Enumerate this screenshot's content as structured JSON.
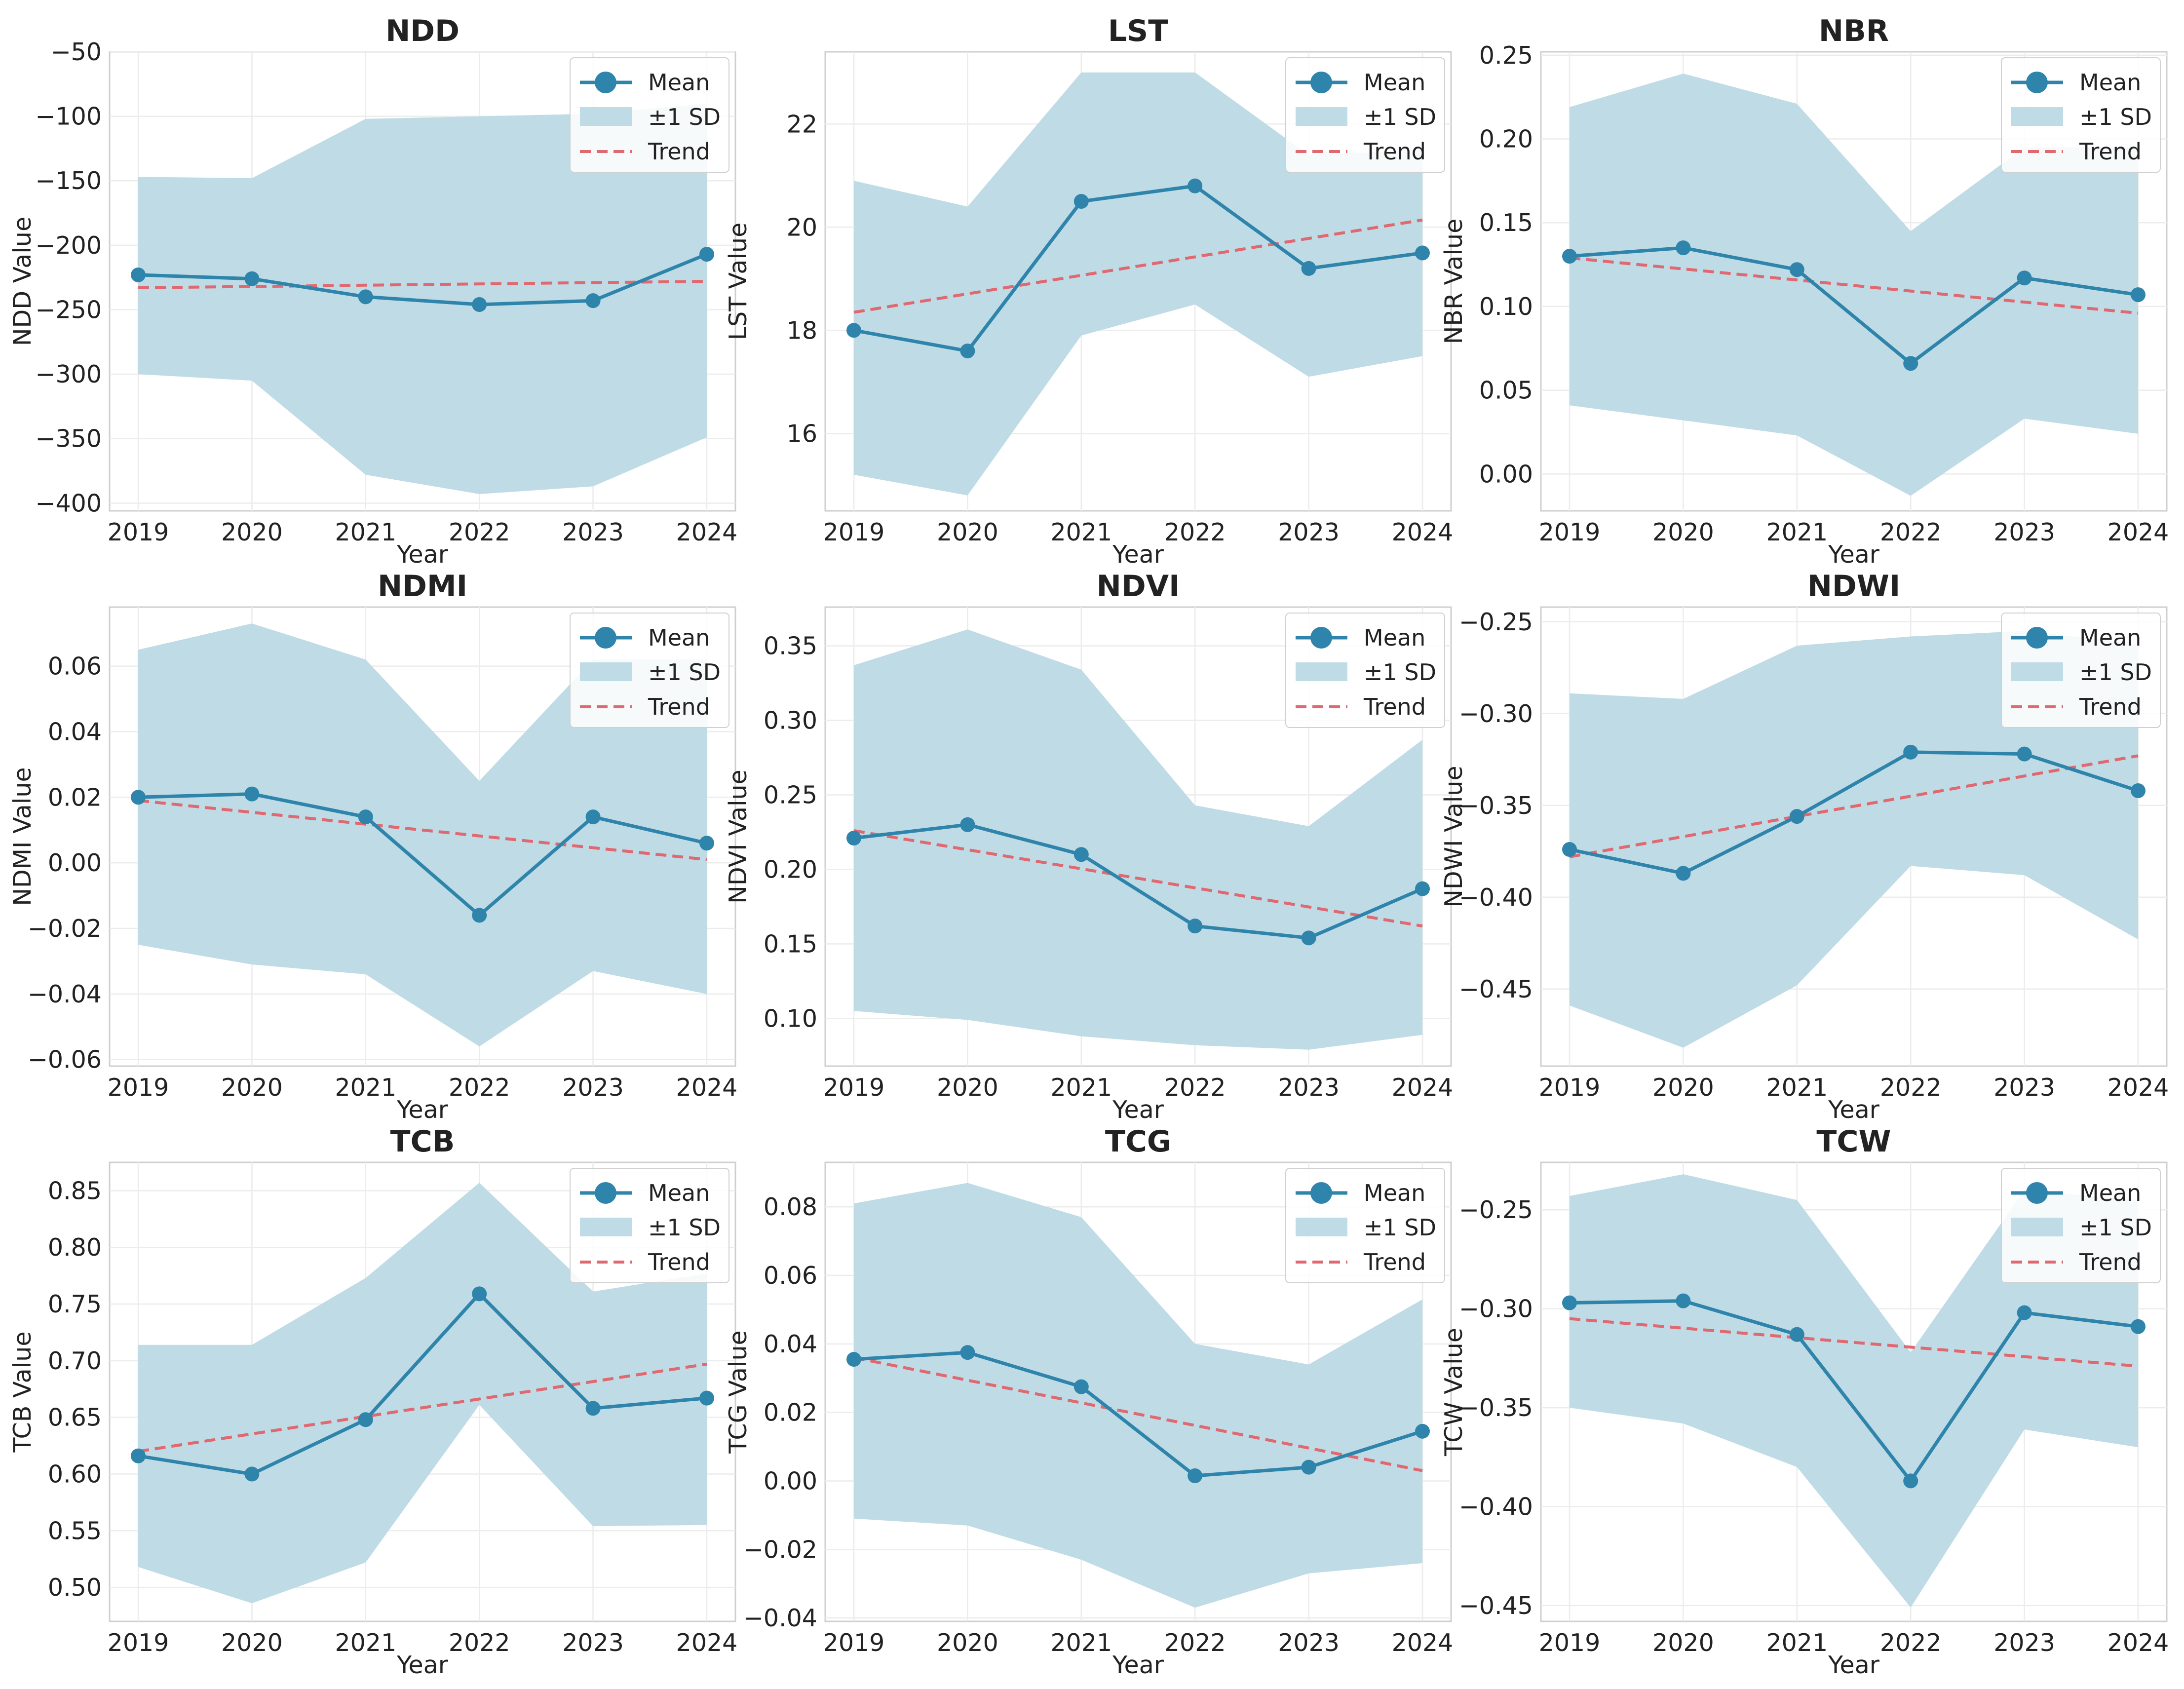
{
  "chart_data": [
    {
      "type": "line",
      "title": "NDD",
      "xlabel": "Year",
      "ylabel": "NDD Value",
      "categories": [
        "2019",
        "2020",
        "2021",
        "2022",
        "2023",
        "2024"
      ],
      "mean": [
        -223,
        -226,
        -240,
        -246,
        -243,
        -207
      ],
      "sd_upper": [
        -147,
        -148,
        -102,
        -100,
        -98,
        -90
      ],
      "sd_lower": [
        -300,
        -305,
        -378,
        -393,
        -387,
        -349
      ],
      "trend": [
        -233,
        -232,
        -231,
        -230,
        -229,
        -228
      ],
      "ylim": [
        -406,
        -50
      ],
      "yticks": [
        -50,
        -100,
        -150,
        -200,
        -250,
        -300,
        -350,
        -400
      ],
      "ytick_labels": [
        "−50",
        "−100",
        "−150",
        "−200",
        "−250",
        "−300",
        "−350",
        "−400"
      ],
      "legend": [
        "Mean",
        "±1 SD",
        "Trend"
      ]
    },
    {
      "type": "line",
      "title": "LST",
      "xlabel": "Year",
      "ylabel": "LST Value",
      "categories": [
        "2019",
        "2020",
        "2021",
        "2022",
        "2023",
        "2024"
      ],
      "mean": [
        18.0,
        17.6,
        20.5,
        20.8,
        19.2,
        19.5
      ],
      "sd_upper": [
        20.9,
        20.4,
        23.0,
        23.0,
        21.4,
        21.5
      ],
      "sd_lower": [
        15.2,
        14.8,
        17.9,
        18.5,
        17.1,
        17.5
      ],
      "trend": [
        18.35,
        18.7,
        19.06,
        19.42,
        19.78,
        20.14
      ],
      "ylim": [
        14.5,
        23.4
      ],
      "yticks": [
        16,
        18,
        20,
        22
      ],
      "ytick_labels": [
        "16",
        "18",
        "20",
        "22"
      ],
      "legend": [
        "Mean",
        "±1 SD",
        "Trend"
      ]
    },
    {
      "type": "line",
      "title": "NBR",
      "xlabel": "Year",
      "ylabel": "NBR Value",
      "categories": [
        "2019",
        "2020",
        "2021",
        "2022",
        "2023",
        "2024"
      ],
      "mean": [
        0.13,
        0.135,
        0.122,
        0.066,
        0.117,
        0.107
      ],
      "sd_upper": [
        0.219,
        0.239,
        0.221,
        0.145,
        0.195,
        0.195
      ],
      "sd_lower": [
        0.041,
        0.032,
        0.023,
        -0.013,
        0.033,
        0.024
      ],
      "trend": [
        0.129,
        0.123,
        0.116,
        0.109,
        0.103,
        0.096
      ],
      "ylim": [
        -0.022,
        0.252
      ],
      "yticks": [
        0.0,
        0.05,
        0.1,
        0.15,
        0.2,
        0.25
      ],
      "ytick_labels": [
        "0.00",
        "0.05",
        "0.10",
        "0.15",
        "0.20",
        "0.25"
      ],
      "legend": [
        "Mean",
        "±1 SD",
        "Trend"
      ]
    },
    {
      "type": "line",
      "title": "NDMI",
      "xlabel": "Year",
      "ylabel": "NDMI Value",
      "categories": [
        "2019",
        "2020",
        "2021",
        "2022",
        "2023",
        "2024"
      ],
      "mean": [
        0.02,
        0.021,
        0.014,
        -0.016,
        0.014,
        0.006
      ],
      "sd_upper": [
        0.065,
        0.073,
        0.062,
        0.025,
        0.062,
        0.062
      ],
      "sd_lower": [
        -0.025,
        -0.031,
        -0.034,
        -0.056,
        -0.033,
        -0.04
      ],
      "trend": [
        0.019,
        0.016,
        0.012,
        0.008,
        0.005,
        0.001
      ],
      "ylim": [
        -0.062,
        0.078
      ],
      "yticks": [
        -0.06,
        -0.04,
        -0.02,
        0.0,
        0.02,
        0.04,
        0.06
      ],
      "ytick_labels": [
        "−0.06",
        "−0.04",
        "−0.02",
        "0.00",
        "0.02",
        "0.04",
        "0.06"
      ],
      "legend": [
        "Mean",
        "±1 SD",
        "Trend"
      ]
    },
    {
      "type": "line",
      "title": "NDVI",
      "xlabel": "Year",
      "ylabel": "NDVI Value",
      "categories": [
        "2019",
        "2020",
        "2021",
        "2022",
        "2023",
        "2024"
      ],
      "mean": [
        0.221,
        0.23,
        0.21,
        0.162,
        0.154,
        0.187
      ],
      "sd_upper": [
        0.337,
        0.361,
        0.334,
        0.243,
        0.229,
        0.287
      ],
      "sd_lower": [
        0.105,
        0.099,
        0.088,
        0.082,
        0.079,
        0.089
      ],
      "trend": [
        0.226,
        0.213,
        0.2,
        0.188,
        0.175,
        0.162
      ],
      "ylim": [
        0.068,
        0.376
      ],
      "yticks": [
        0.1,
        0.15,
        0.2,
        0.25,
        0.3,
        0.35
      ],
      "ytick_labels": [
        "0.10",
        "0.15",
        "0.20",
        "0.25",
        "0.30",
        "0.35"
      ],
      "legend": [
        "Mean",
        "±1 SD",
        "Trend"
      ]
    },
    {
      "type": "line",
      "title": "NDWI",
      "xlabel": "Year",
      "ylabel": "NDWI Value",
      "categories": [
        "2019",
        "2020",
        "2021",
        "2022",
        "2023",
        "2024"
      ],
      "mean": [
        -0.374,
        -0.387,
        -0.356,
        -0.321,
        -0.322,
        -0.342
      ],
      "sd_upper": [
        -0.289,
        -0.292,
        -0.263,
        -0.258,
        -0.255,
        -0.262
      ],
      "sd_lower": [
        -0.459,
        -0.482,
        -0.448,
        -0.383,
        -0.388,
        -0.423
      ],
      "trend": [
        -0.378,
        -0.367,
        -0.356,
        -0.345,
        -0.334,
        -0.323
      ],
      "ylim": [
        -0.492,
        -0.242
      ],
      "yticks": [
        -0.45,
        -0.4,
        -0.35,
        -0.3,
        -0.25
      ],
      "ytick_labels": [
        "−0.45",
        "−0.40",
        "−0.35",
        "−0.30",
        "−0.25"
      ],
      "legend": [
        "Mean",
        "±1 SD",
        "Trend"
      ]
    },
    {
      "type": "line",
      "title": "TCB",
      "xlabel": "Year",
      "ylabel": "TCB Value",
      "categories": [
        "2019",
        "2020",
        "2021",
        "2022",
        "2023",
        "2024"
      ],
      "mean": [
        0.616,
        0.6,
        0.648,
        0.759,
        0.658,
        0.667
      ],
      "sd_upper": [
        0.714,
        0.714,
        0.773,
        0.857,
        0.761,
        0.777
      ],
      "sd_lower": [
        0.518,
        0.486,
        0.522,
        0.661,
        0.554,
        0.555
      ],
      "trend": [
        0.62,
        0.635,
        0.65,
        0.666,
        0.681,
        0.697
      ],
      "ylim": [
        0.47,
        0.875
      ],
      "yticks": [
        0.5,
        0.55,
        0.6,
        0.65,
        0.7,
        0.75,
        0.8,
        0.85
      ],
      "ytick_labels": [
        "0.50",
        "0.55",
        "0.60",
        "0.65",
        "0.70",
        "0.75",
        "0.80",
        "0.85"
      ],
      "legend": [
        "Mean",
        "±1 SD",
        "Trend"
      ]
    },
    {
      "type": "line",
      "title": "TCG",
      "xlabel": "Year",
      "ylabel": "TCG Value",
      "categories": [
        "2019",
        "2020",
        "2021",
        "2022",
        "2023",
        "2024"
      ],
      "mean": [
        0.0355,
        0.0375,
        0.0275,
        0.0015,
        0.004,
        0.0145
      ],
      "sd_upper": [
        0.081,
        0.087,
        0.077,
        0.04,
        0.034,
        0.053
      ],
      "sd_lower": [
        -0.011,
        -0.013,
        -0.023,
        -0.037,
        -0.027,
        -0.024
      ],
      "trend": [
        0.036,
        0.03,
        0.023,
        0.016,
        0.01,
        0.003
      ],
      "ylim": [
        -0.041,
        0.093
      ],
      "yticks": [
        -0.04,
        -0.02,
        0.0,
        0.02,
        0.04,
        0.06,
        0.08
      ],
      "ytick_labels": [
        "−0.04",
        "−0.02",
        "0.00",
        "0.02",
        "0.04",
        "0.06",
        "0.08"
      ],
      "legend": [
        "Mean",
        "±1 SD",
        "Trend"
      ]
    },
    {
      "type": "line",
      "title": "TCW",
      "xlabel": "Year",
      "ylabel": "TCW Value",
      "categories": [
        "2019",
        "2020",
        "2021",
        "2022",
        "2023",
        "2024"
      ],
      "mean": [
        -0.297,
        -0.296,
        -0.313,
        -0.387,
        -0.302,
        -0.309
      ],
      "sd_upper": [
        -0.243,
        -0.232,
        -0.245,
        -0.322,
        -0.24,
        -0.245
      ],
      "sd_lower": [
        -0.35,
        -0.358,
        -0.38,
        -0.451,
        -0.361,
        -0.37
      ],
      "trend": [
        -0.305,
        -0.31,
        -0.315,
        -0.319,
        -0.324,
        -0.329
      ],
      "ylim": [
        -0.458,
        -0.226
      ],
      "yticks": [
        -0.45,
        -0.4,
        -0.35,
        -0.3,
        -0.25
      ],
      "ytick_labels": [
        "−0.45",
        "−0.40",
        "−0.35",
        "−0.30",
        "−0.25"
      ],
      "legend": [
        "Mean",
        "±1 SD",
        "Trend"
      ]
    }
  ]
}
